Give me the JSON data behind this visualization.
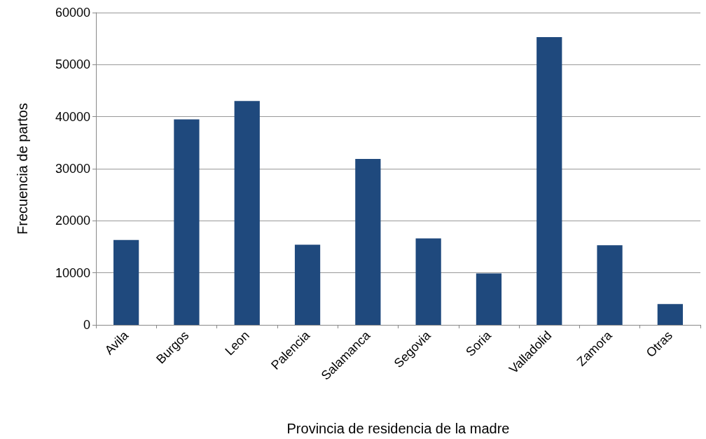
{
  "chart_data": {
    "type": "bar",
    "xlabel": "Provincia de residencia de la madre",
    "ylabel": "Frecuencia de partos",
    "categories": [
      "Avila",
      "Burgos",
      "Leon",
      "Palencia",
      "Salamanca",
      "Segovia",
      "Soria",
      "Valladolid",
      "Zamora",
      "Otras"
    ],
    "values": [
      16300,
      39500,
      43000,
      15400,
      31900,
      16600,
      9900,
      55300,
      15300,
      4000
    ],
    "color": "#1f497d",
    "ylim": [
      0,
      60000
    ],
    "yticks": [
      0,
      10000,
      20000,
      30000,
      40000,
      50000,
      60000
    ],
    "grid": "y"
  }
}
